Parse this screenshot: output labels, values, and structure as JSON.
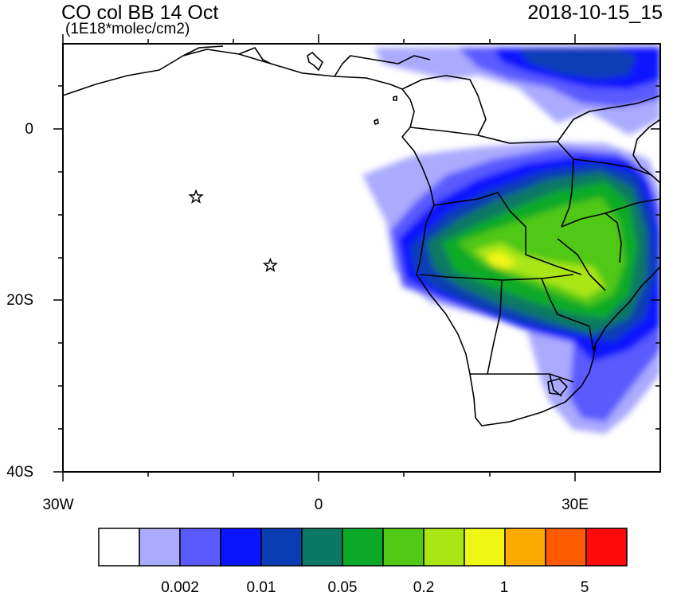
{
  "header": {
    "title": "CO col BB 14 Oct",
    "units": "(1E18*molec/cm2)",
    "datetime": "2018-10-15_15"
  },
  "axes": {
    "y_labels": [
      "0",
      "20S",
      "40S"
    ],
    "x_labels": [
      "30W",
      "0",
      "30E"
    ],
    "lat_range": [
      -40,
      10
    ],
    "lon_range": [
      -30,
      40
    ]
  },
  "markers": {
    "type": "star",
    "points": [
      {
        "lon": -14.4,
        "lat": -7.9
      },
      {
        "lon": -5.7,
        "lat": -15.9
      }
    ]
  },
  "colorbar": {
    "colors": [
      "#ffffff",
      "#aaaaff",
      "#5a5aff",
      "#0a14ff",
      "#0a3cb4",
      "#0a7864",
      "#0aaa28",
      "#50c814",
      "#aae614",
      "#f0f514",
      "#ffaa00",
      "#ff5a00",
      "#ff0a0a"
    ],
    "labels": [
      "0.002",
      "0.01",
      "0.05",
      "0.2",
      "1",
      "5"
    ]
  }
}
